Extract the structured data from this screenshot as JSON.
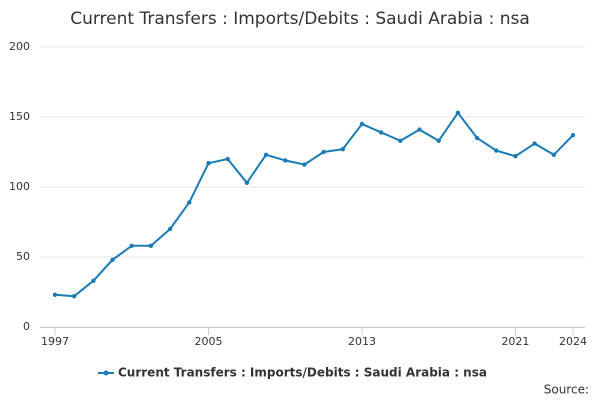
{
  "chart_data": {
    "type": "line",
    "title": "Current Transfers : Imports/Debits : Saudi Arabia : nsa",
    "source": "Source:",
    "x": [
      1997,
      1998,
      1999,
      2000,
      2001,
      2002,
      2003,
      2004,
      2005,
      2006,
      2007,
      2008,
      2009,
      2010,
      2011,
      2012,
      2013,
      2014,
      2015,
      2016,
      2017,
      2018,
      2019,
      2020,
      2021,
      2022,
      2023,
      2024
    ],
    "series": [
      {
        "name": "Current Transfers : Imports/Debits : Saudi Arabia : nsa",
        "color": "#1a7bb5",
        "values": [
          23,
          22,
          33,
          48,
          58,
          58,
          70,
          89,
          117,
          120,
          103,
          123,
          119,
          116,
          125,
          127,
          145,
          139,
          133,
          141,
          133,
          153,
          135,
          126,
          122,
          131,
          123,
          137
        ]
      }
    ],
    "xlim": [
      1997,
      2024
    ],
    "xticks": [
      1997,
      2005,
      2013,
      2021,
      2024
    ],
    "ylim": [
      0,
      200
    ],
    "yticks": [
      0,
      50,
      100,
      150,
      200
    ],
    "grid": true
  }
}
